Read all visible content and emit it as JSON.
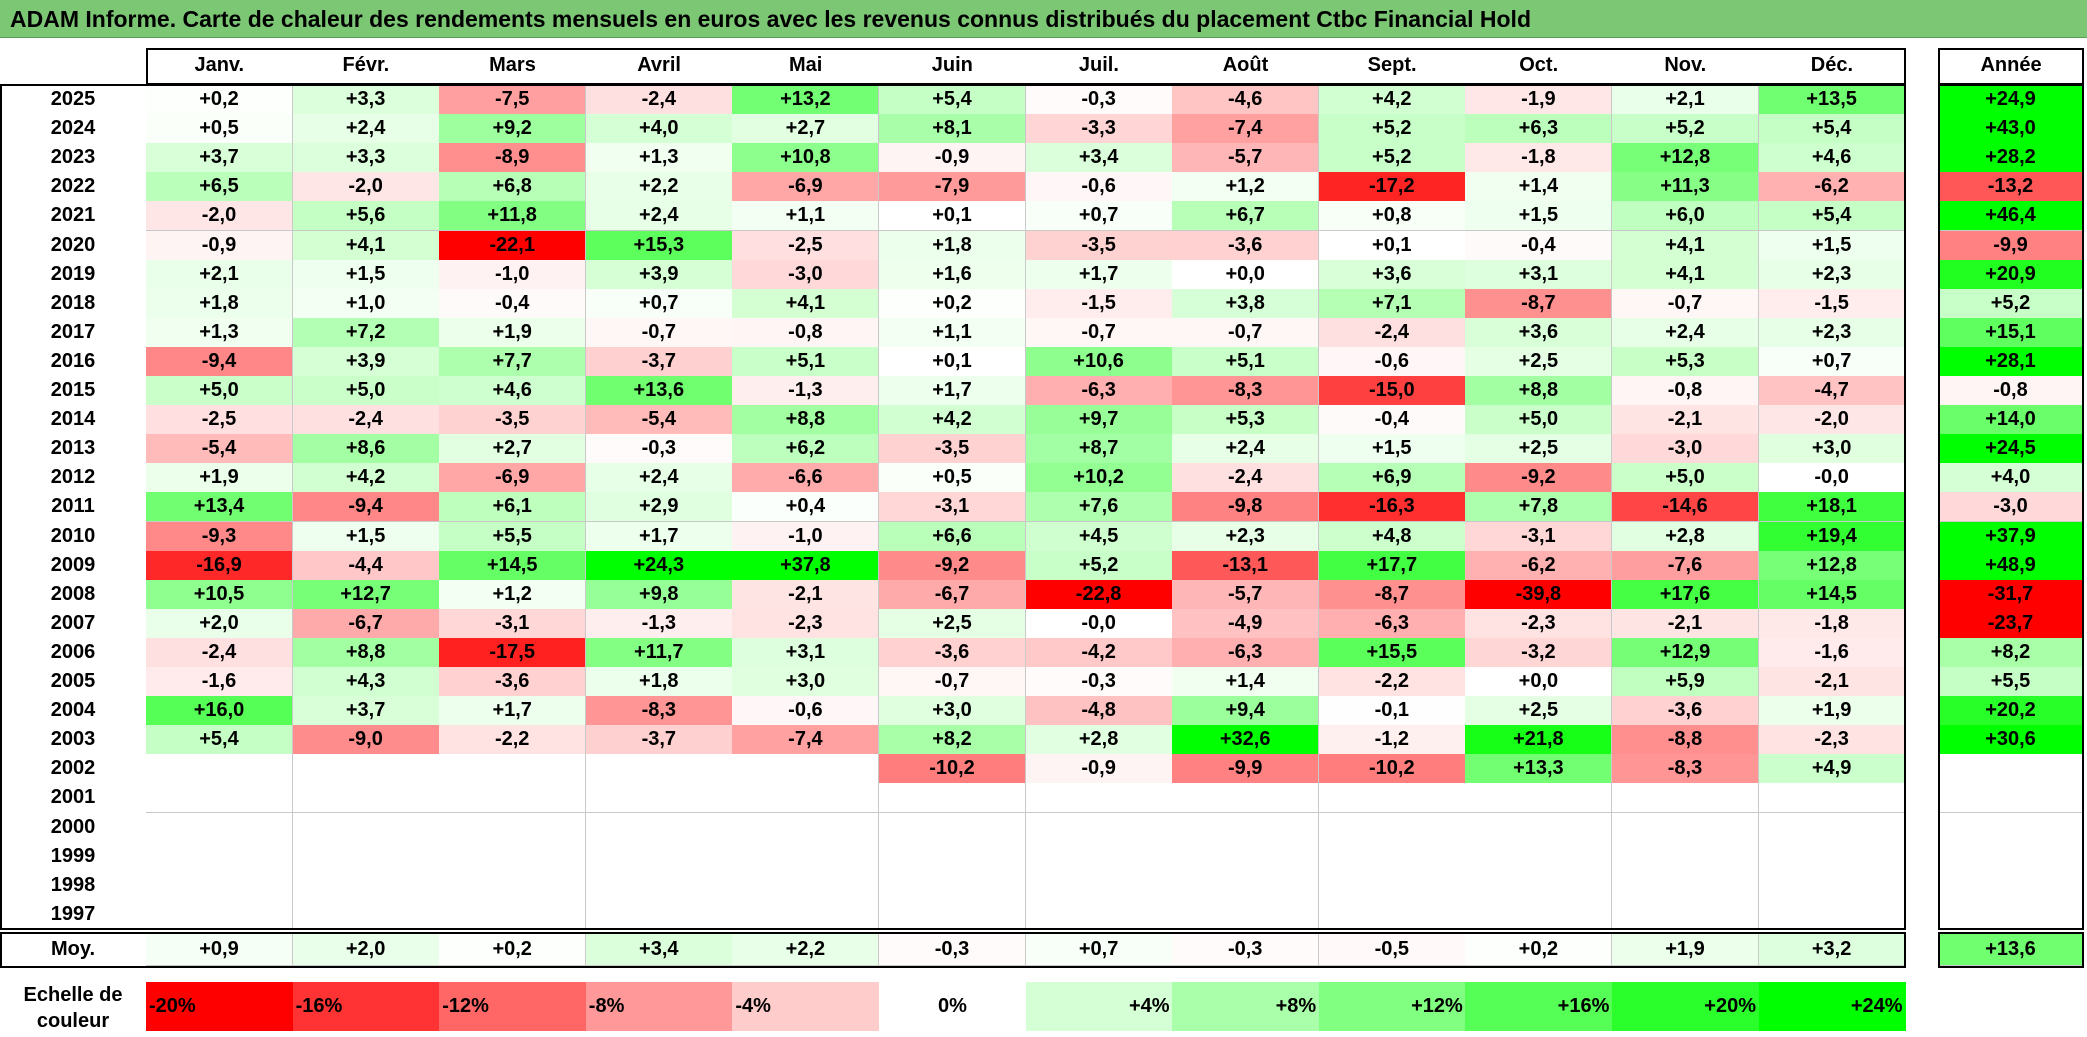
{
  "title": "ADAM Informe. Carte de chaleur des rendements mensuels en euros avec les revenus connus distribués du placement Ctbc Financial Hold",
  "chart_data": {
    "type": "heatmap",
    "title": "ADAM Informe. Carte de chaleur des rendements mensuels en euros avec les revenus connus distribués du placement Ctbc Financial Hold",
    "columns": [
      "Janv.",
      "Févr.",
      "Mars",
      "Avril",
      "Mai",
      "Juin",
      "Juil.",
      "Août",
      "Sept.",
      "Oct.",
      "Nov.",
      "Déc."
    ],
    "annual_header": "Année",
    "rows": [
      {
        "year": "2025",
        "values": [
          "+0,2",
          "+3,3",
          "-7,5",
          "-2,4",
          "+13,2",
          "+5,4",
          "-0,3",
          "-4,6",
          "+4,2",
          "-1,9",
          "+2,1",
          "+13,5"
        ],
        "annual": "+24,9"
      },
      {
        "year": "2024",
        "values": [
          "+0,5",
          "+2,4",
          "+9,2",
          "+4,0",
          "+2,7",
          "+8,1",
          "-3,3",
          "-7,4",
          "+5,2",
          "+6,3",
          "+5,2",
          "+5,4"
        ],
        "annual": "+43,0"
      },
      {
        "year": "2023",
        "values": [
          "+3,7",
          "+3,3",
          "-8,9",
          "+1,3",
          "+10,8",
          "-0,9",
          "+3,4",
          "-5,7",
          "+5,2",
          "-1,8",
          "+12,8",
          "+4,6"
        ],
        "annual": "+28,2"
      },
      {
        "year": "2022",
        "values": [
          "+6,5",
          "-2,0",
          "+6,8",
          "+2,2",
          "-6,9",
          "-7,9",
          "-0,6",
          "+1,2",
          "-17,2",
          "+1,4",
          "+11,3",
          "-6,2"
        ],
        "annual": "-13,2"
      },
      {
        "year": "2021",
        "values": [
          "-2,0",
          "+5,6",
          "+11,8",
          "+2,4",
          "+1,1",
          "+0,1",
          "+0,7",
          "+6,7",
          "+0,8",
          "+1,5",
          "+6,0",
          "+5,4"
        ],
        "annual": "+46,4"
      },
      {
        "year": "2020",
        "values": [
          "-0,9",
          "+4,1",
          "-22,1",
          "+15,3",
          "-2,5",
          "+1,8",
          "-3,5",
          "-3,6",
          "+0,1",
          "-0,4",
          "+4,1",
          "+1,5"
        ],
        "annual": "-9,9"
      },
      {
        "year": "2019",
        "values": [
          "+2,1",
          "+1,5",
          "-1,0",
          "+3,9",
          "-3,0",
          "+1,6",
          "+1,7",
          "+0,0",
          "+3,6",
          "+3,1",
          "+4,1",
          "+2,3"
        ],
        "annual": "+20,9"
      },
      {
        "year": "2018",
        "values": [
          "+1,8",
          "+1,0",
          "-0,4",
          "+0,7",
          "+4,1",
          "+0,2",
          "-1,5",
          "+3,8",
          "+7,1",
          "-8,7",
          "-0,7",
          "-1,5"
        ],
        "annual": "+5,2"
      },
      {
        "year": "2017",
        "values": [
          "+1,3",
          "+7,2",
          "+1,9",
          "-0,7",
          "-0,8",
          "+1,1",
          "-0,7",
          "-0,7",
          "-2,4",
          "+3,6",
          "+2,4",
          "+2,3"
        ],
        "annual": "+15,1"
      },
      {
        "year": "2016",
        "values": [
          "-9,4",
          "+3,9",
          "+7,7",
          "-3,7",
          "+5,1",
          "+0,1",
          "+10,6",
          "+5,1",
          "-0,6",
          "+2,5",
          "+5,3",
          "+0,7"
        ],
        "annual": "+28,1"
      },
      {
        "year": "2015",
        "values": [
          "+5,0",
          "+5,0",
          "+4,6",
          "+13,6",
          "-1,3",
          "+1,7",
          "-6,3",
          "-8,3",
          "-15,0",
          "+8,8",
          "-0,8",
          "-4,7"
        ],
        "annual": "-0,8"
      },
      {
        "year": "2014",
        "values": [
          "-2,5",
          "-2,4",
          "-3,5",
          "-5,4",
          "+8,8",
          "+4,2",
          "+9,7",
          "+5,3",
          "-0,4",
          "+5,0",
          "-2,1",
          "-2,0"
        ],
        "annual": "+14,0"
      },
      {
        "year": "2013",
        "values": [
          "-5,4",
          "+8,6",
          "+2,7",
          "-0,3",
          "+6,2",
          "-3,5",
          "+8,7",
          "+2,4",
          "+1,5",
          "+2,5",
          "-3,0",
          "+3,0"
        ],
        "annual": "+24,5"
      },
      {
        "year": "2012",
        "values": [
          "+1,9",
          "+4,2",
          "-6,9",
          "+2,4",
          "-6,6",
          "+0,5",
          "+10,2",
          "-2,4",
          "+6,9",
          "-9,2",
          "+5,0",
          "-0,0"
        ],
        "annual": "+4,0"
      },
      {
        "year": "2011",
        "values": [
          "+13,4",
          "-9,4",
          "+6,1",
          "+2,9",
          "+0,4",
          "-3,1",
          "+7,6",
          "-9,8",
          "-16,3",
          "+7,8",
          "-14,6",
          "+18,1"
        ],
        "annual": "-3,0"
      },
      {
        "year": "2010",
        "values": [
          "-9,3",
          "+1,5",
          "+5,5",
          "+1,7",
          "-1,0",
          "+6,6",
          "+4,5",
          "+2,3",
          "+4,8",
          "-3,1",
          "+2,8",
          "+19,4"
        ],
        "annual": "+37,9"
      },
      {
        "year": "2009",
        "values": [
          "-16,9",
          "-4,4",
          "+14,5",
          "+24,3",
          "+37,8",
          "-9,2",
          "+5,2",
          "-13,1",
          "+17,7",
          "-6,2",
          "-7,6",
          "+12,8"
        ],
        "annual": "+48,9"
      },
      {
        "year": "2008",
        "values": [
          "+10,5",
          "+12,7",
          "+1,2",
          "+9,8",
          "-2,1",
          "-6,7",
          "-22,8",
          "-5,7",
          "-8,7",
          "-39,8",
          "+17,6",
          "+14,5"
        ],
        "annual": "-31,7"
      },
      {
        "year": "2007",
        "values": [
          "+2,0",
          "-6,7",
          "-3,1",
          "-1,3",
          "-2,3",
          "+2,5",
          "-0,0",
          "-4,9",
          "-6,3",
          "-2,3",
          "-2,1",
          "-1,8"
        ],
        "annual": "-23,7"
      },
      {
        "year": "2006",
        "values": [
          "-2,4",
          "+8,8",
          "-17,5",
          "+11,7",
          "+3,1",
          "-3,6",
          "-4,2",
          "-6,3",
          "+15,5",
          "-3,2",
          "+12,9",
          "-1,6"
        ],
        "annual": "+8,2"
      },
      {
        "year": "2005",
        "values": [
          "-1,6",
          "+4,3",
          "-3,6",
          "+1,8",
          "+3,0",
          "-0,7",
          "-0,3",
          "+1,4",
          "-2,2",
          "+0,0",
          "+5,9",
          "-2,1"
        ],
        "annual": "+5,5"
      },
      {
        "year": "2004",
        "values": [
          "+16,0",
          "+3,7",
          "+1,7",
          "-8,3",
          "-0,6",
          "+3,0",
          "-4,8",
          "+9,4",
          "-0,1",
          "+2,5",
          "-3,6",
          "+1,9"
        ],
        "annual": "+20,2"
      },
      {
        "year": "2003",
        "values": [
          "+5,4",
          "-9,0",
          "-2,2",
          "-3,7",
          "-7,4",
          "+8,2",
          "+2,8",
          "+32,6",
          "-1,2",
          "+21,8",
          "-8,8",
          "-2,3"
        ],
        "annual": "+30,6"
      },
      {
        "year": "2002",
        "values": [
          "",
          "",
          "",
          "",
          "",
          "-10,2",
          "-0,9",
          "-9,9",
          "-10,2",
          "+13,3",
          "-8,3",
          "+4,9"
        ],
        "annual": ""
      },
      {
        "year": "2001",
        "values": [
          "",
          "",
          "",
          "",
          "",
          "",
          "",
          "",
          "",
          "",
          "",
          ""
        ],
        "annual": ""
      },
      {
        "year": "2000",
        "values": [
          "",
          "",
          "",
          "",
          "",
          "",
          "",
          "",
          "",
          "",
          "",
          ""
        ],
        "annual": ""
      },
      {
        "year": "1999",
        "values": [
          "",
          "",
          "",
          "",
          "",
          "",
          "",
          "",
          "",
          "",
          "",
          ""
        ],
        "annual": ""
      },
      {
        "year": "1998",
        "values": [
          "",
          "",
          "",
          "",
          "",
          "",
          "",
          "",
          "",
          "",
          "",
          ""
        ],
        "annual": ""
      },
      {
        "year": "1997",
        "values": [
          "",
          "",
          "",
          "",
          "",
          "",
          "",
          "",
          "",
          "",
          "",
          ""
        ],
        "annual": ""
      }
    ],
    "average": {
      "label": "Moy.",
      "values": [
        "+0,9",
        "+2,0",
        "+0,2",
        "+3,4",
        "+2,2",
        "-0,3",
        "+0,7",
        "-0,3",
        "-0,5",
        "+0,2",
        "+1,9",
        "+3,2"
      ],
      "annual": "+13,6"
    },
    "color_scale": {
      "label": "Echelle de couleur",
      "stops": [
        "-20%",
        "-16%",
        "-12%",
        "-8%",
        "-4%",
        "0%",
        "+4%",
        "+8%",
        "+12%",
        "+16%",
        "+20%",
        "+24%"
      ],
      "negative_color": "#ff0000",
      "neutral_color": "#ffffff",
      "positive_color": "#00ff00"
    }
  }
}
